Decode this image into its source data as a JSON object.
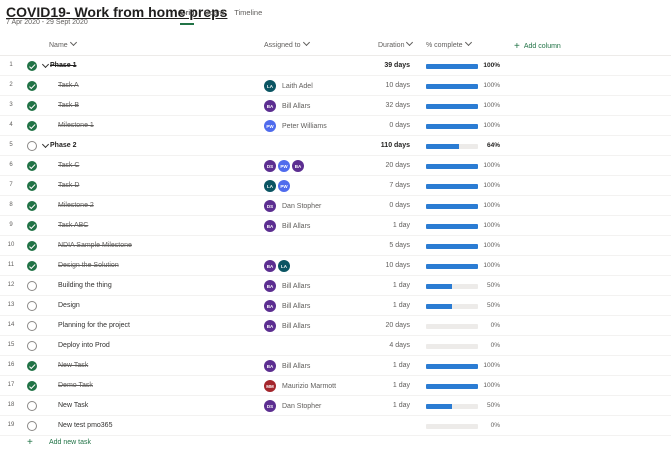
{
  "project": {
    "title": "COVID19- Work from home preps",
    "dates": "7 Apr 2020 - 29 Sept 2020"
  },
  "tabs": [
    "Grid",
    "Board",
    "Timeline"
  ],
  "active_tab": 0,
  "columns": {
    "name": "Name",
    "assigned": "Assigned to",
    "duration": "Duration",
    "percent": "% complete",
    "add": "Add column"
  },
  "colors": {
    "accent": "#217346",
    "progress": "#2b7cd3",
    "avatar_LA": "#0b5563",
    "avatar_BA": "#5c2e91",
    "avatar_PW": "#4f6bed",
    "avatar_DS": "#5c2e91",
    "avatar_MM": "#a4262c"
  },
  "rows": [
    {
      "num": "1",
      "name": "Phase 1",
      "phase": true,
      "done": true,
      "strike": true,
      "avatars": [],
      "assignee": "",
      "duration": "39 days",
      "percent": 100,
      "percent_label": "100%"
    },
    {
      "num": "2",
      "name": "Task A",
      "phase": false,
      "done": true,
      "strike": true,
      "avatars": [
        "LA"
      ],
      "assignee": "Laith Adel",
      "duration": "10 days",
      "percent": 100,
      "percent_label": "100%"
    },
    {
      "num": "3",
      "name": "Task B",
      "phase": false,
      "done": true,
      "strike": true,
      "avatars": [
        "BA"
      ],
      "assignee": "Bill Allars",
      "duration": "32 days",
      "percent": 100,
      "percent_label": "100%"
    },
    {
      "num": "4",
      "name": "Milestone 1",
      "phase": false,
      "done": true,
      "strike": true,
      "avatars": [
        "PW"
      ],
      "assignee": "Peter Williams",
      "duration": "0 days",
      "percent": 100,
      "percent_label": "100%"
    },
    {
      "num": "5",
      "name": "Phase 2",
      "phase": true,
      "done": false,
      "strike": false,
      "avatars": [],
      "assignee": "",
      "duration": "110 days",
      "percent": 64,
      "percent_label": "64%"
    },
    {
      "num": "6",
      "name": "Task C",
      "phase": false,
      "done": true,
      "strike": true,
      "avatars": [
        "DS",
        "PW",
        "BA"
      ],
      "assignee": "",
      "duration": "20 days",
      "percent": 100,
      "percent_label": "100%"
    },
    {
      "num": "7",
      "name": "Task D",
      "phase": false,
      "done": true,
      "strike": true,
      "avatars": [
        "LA",
        "PW"
      ],
      "assignee": "",
      "duration": "7 days",
      "percent": 100,
      "percent_label": "100%"
    },
    {
      "num": "8",
      "name": "Milestone 2",
      "phase": false,
      "done": true,
      "strike": true,
      "avatars": [
        "DS"
      ],
      "assignee": "Dan Stopher",
      "duration": "0 days",
      "percent": 100,
      "percent_label": "100%"
    },
    {
      "num": "9",
      "name": "Task ABC",
      "phase": false,
      "done": true,
      "strike": true,
      "avatars": [
        "BA"
      ],
      "assignee": "Bill Allars",
      "duration": "1 day",
      "percent": 100,
      "percent_label": "100%"
    },
    {
      "num": "10",
      "name": "NDIA Sample Milestone",
      "phase": false,
      "done": true,
      "strike": true,
      "avatars": [],
      "assignee": "",
      "duration": "5 days",
      "percent": 100,
      "percent_label": "100%"
    },
    {
      "num": "11",
      "name": "Design the Solution",
      "phase": false,
      "done": true,
      "strike": true,
      "avatars": [
        "BA",
        "LA"
      ],
      "assignee": "",
      "duration": "10 days",
      "percent": 100,
      "percent_label": "100%"
    },
    {
      "num": "12",
      "name": "Building the thing",
      "phase": false,
      "done": false,
      "strike": false,
      "avatars": [
        "BA"
      ],
      "assignee": "Bill Allars",
      "duration": "1 day",
      "percent": 50,
      "percent_label": "50%"
    },
    {
      "num": "13",
      "name": "Design",
      "phase": false,
      "done": false,
      "strike": false,
      "avatars": [
        "BA"
      ],
      "assignee": "Bill Allars",
      "duration": "1 day",
      "percent": 50,
      "percent_label": "50%"
    },
    {
      "num": "14",
      "name": "Planning for the project",
      "phase": false,
      "done": false,
      "strike": false,
      "avatars": [
        "BA"
      ],
      "assignee": "Bill Allars",
      "duration": "20 days",
      "percent": 0,
      "percent_label": "0%"
    },
    {
      "num": "15",
      "name": "Deploy into Prod",
      "phase": false,
      "done": false,
      "strike": false,
      "avatars": [],
      "assignee": "",
      "duration": "4 days",
      "percent": 0,
      "percent_label": "0%"
    },
    {
      "num": "16",
      "name": "New Task",
      "phase": false,
      "done": true,
      "strike": true,
      "avatars": [
        "BA"
      ],
      "assignee": "Bill Allars",
      "duration": "1 day",
      "percent": 100,
      "percent_label": "100%"
    },
    {
      "num": "17",
      "name": "Demo Task",
      "phase": false,
      "done": true,
      "strike": true,
      "avatars": [
        "MM"
      ],
      "assignee": "Maurizio Marmott",
      "duration": "1 day",
      "percent": 100,
      "percent_label": "100%"
    },
    {
      "num": "18",
      "name": "New Task",
      "phase": false,
      "done": false,
      "strike": false,
      "avatars": [
        "DS"
      ],
      "assignee": "Dan Stopher",
      "duration": "1 day",
      "percent": 50,
      "percent_label": "50%"
    },
    {
      "num": "19",
      "name": "New test pmo365",
      "phase": false,
      "done": false,
      "strike": false,
      "avatars": [],
      "assignee": "",
      "duration": "",
      "percent": 0,
      "percent_label": "0%"
    }
  ],
  "add_task_label": "Add new task"
}
